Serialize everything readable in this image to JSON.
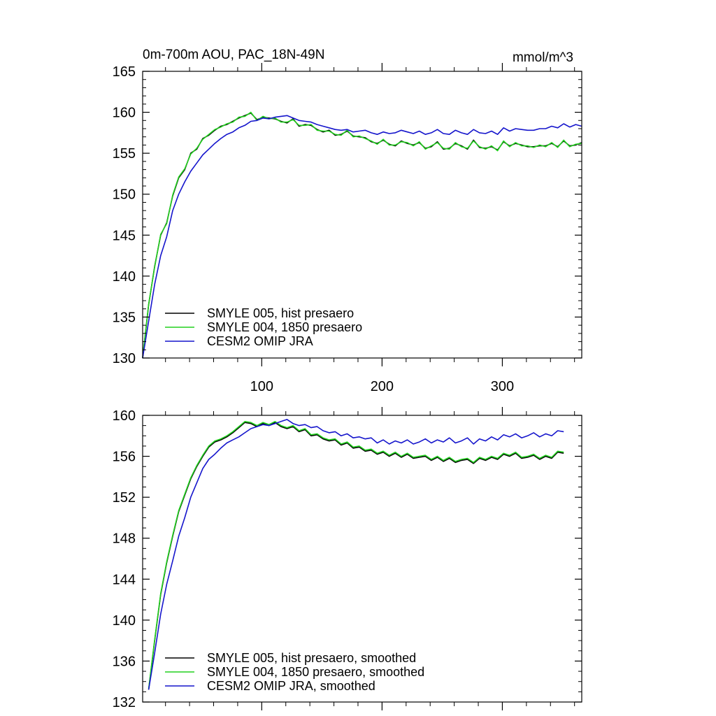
{
  "chart_data": [
    {
      "type": "line",
      "title": "0m-700m AOU, PAC_18N-49N",
      "units": "mmol/m^3",
      "xlabel": "",
      "ylabel": "",
      "xlim": [
        1,
        366
      ],
      "ylim": [
        130,
        165
      ],
      "x_ticks": [
        100,
        200,
        300
      ],
      "y_ticks": [
        130,
        135,
        140,
        145,
        150,
        155,
        160,
        165
      ],
      "y_minor_step": 1,
      "x_minor_step": 20,
      "grid": false,
      "legend_position": "bottom-left",
      "series": [
        {
          "name": "SMYLE 005, hist presaero",
          "color": "#000000",
          "x_start": 1,
          "x_step": 5,
          "values": [
            130.0,
            136.5,
            141.2,
            145.0,
            146.5,
            149.8,
            152.0,
            153.0,
            155.0,
            155.5,
            156.8,
            157.2,
            157.8,
            158.3,
            158.5,
            158.9,
            159.3,
            159.6,
            159.9,
            159.1,
            159.4,
            159.3,
            159.2,
            158.9,
            158.7,
            159.2,
            158.3,
            158.5,
            158.4,
            157.9,
            157.6,
            157.8,
            157.2,
            157.3,
            157.7,
            157.1,
            157.0,
            156.9,
            156.4,
            156.2,
            156.6,
            156.1,
            155.9,
            156.5,
            156.2,
            156.0,
            156.3,
            155.6,
            155.8,
            156.4,
            155.5,
            155.6,
            156.2,
            155.9,
            155.5,
            156.6,
            155.7,
            155.6,
            155.8,
            155.4,
            156.4,
            155.9,
            156.2,
            156.0,
            155.8,
            155.8,
            155.9,
            155.9,
            156.2,
            155.8,
            156.5,
            155.9,
            156.0,
            156.3
          ]
        },
        {
          "name": "SMYLE 004, 1850 presaero",
          "color": "#22d11f",
          "x_start": 1,
          "x_step": 5,
          "values": [
            130.1,
            136.6,
            141.1,
            145.1,
            146.4,
            149.9,
            152.1,
            153.1,
            154.9,
            155.6,
            156.7,
            157.3,
            157.9,
            158.2,
            158.6,
            158.8,
            159.4,
            159.5,
            160.0,
            159.0,
            159.5,
            159.2,
            159.3,
            158.8,
            158.8,
            159.1,
            158.4,
            158.4,
            158.5,
            157.8,
            157.7,
            157.7,
            157.3,
            157.2,
            157.8,
            157.0,
            157.1,
            156.8,
            156.5,
            156.1,
            156.7,
            156.0,
            156.0,
            156.4,
            156.3,
            155.9,
            156.4,
            155.5,
            155.9,
            156.3,
            155.6,
            155.5,
            156.3,
            155.8,
            155.6,
            156.5,
            155.8,
            155.5,
            155.9,
            155.3,
            156.5,
            155.8,
            156.3,
            155.9,
            155.9,
            155.7,
            156.0,
            155.8,
            156.3,
            155.7,
            156.6,
            155.8,
            156.1,
            156.2
          ]
        },
        {
          "name": "CESM2 OMIP JRA",
          "color": "#1515cc",
          "x_start": 1,
          "x_step": 5,
          "values": [
            130.0,
            134.5,
            139.0,
            142.5,
            144.8,
            148.0,
            150.0,
            151.5,
            152.8,
            153.8,
            154.8,
            155.5,
            156.2,
            156.8,
            157.3,
            157.6,
            158.1,
            158.4,
            158.9,
            159.0,
            159.3,
            159.2,
            159.4,
            159.5,
            159.6,
            159.3,
            159.0,
            158.9,
            158.8,
            158.5,
            158.3,
            158.1,
            157.9,
            157.8,
            157.9,
            157.6,
            157.7,
            157.8,
            157.5,
            157.3,
            157.6,
            157.4,
            157.5,
            157.8,
            157.6,
            157.4,
            157.7,
            157.3,
            157.5,
            157.9,
            157.4,
            157.3,
            157.8,
            157.5,
            157.3,
            157.9,
            157.5,
            157.4,
            157.7,
            157.3,
            158.1,
            157.7,
            158.0,
            157.9,
            157.8,
            157.8,
            158.0,
            158.0,
            158.3,
            158.1,
            158.6,
            158.2,
            158.5,
            158.3
          ]
        }
      ]
    },
    {
      "type": "line",
      "title": "",
      "xlabel": "",
      "ylabel": "",
      "xlim": [
        1,
        366
      ],
      "ylim": [
        132,
        160
      ],
      "x_ticks": [
        100,
        200,
        300
      ],
      "y_ticks": [
        132,
        136,
        140,
        144,
        148,
        152,
        156,
        160
      ],
      "y_minor_step": 1,
      "x_minor_step": 20,
      "grid": false,
      "legend_position": "bottom-left",
      "series": [
        {
          "name": "SMYLE 005, hist presaero, smoothed",
          "color": "#000000",
          "x_start": 6,
          "x_step": 5,
          "values": [
            133.2,
            138.0,
            142.5,
            145.6,
            148.2,
            150.6,
            152.2,
            153.8,
            155.0,
            156.0,
            156.9,
            157.4,
            157.6,
            157.9,
            158.3,
            158.8,
            159.3,
            159.2,
            158.9,
            159.2,
            159.0,
            159.3,
            158.9,
            158.7,
            158.9,
            158.4,
            158.6,
            158.0,
            158.1,
            157.7,
            157.5,
            157.6,
            157.1,
            157.3,
            156.8,
            156.9,
            156.5,
            156.6,
            156.2,
            156.4,
            156.0,
            156.3,
            155.9,
            156.2,
            155.8,
            155.9,
            156.0,
            155.6,
            155.9,
            155.5,
            155.8,
            155.4,
            155.6,
            155.7,
            155.3,
            155.8,
            155.6,
            155.9,
            155.7,
            156.2,
            156.0,
            156.3,
            155.8,
            155.9,
            156.1,
            155.7,
            156.0,
            155.8,
            156.4,
            156.3
          ]
        },
        {
          "name": "SMYLE 004, 1850 presaero, smoothed",
          "color": "#22d11f",
          "x_start": 6,
          "x_step": 5,
          "values": [
            133.3,
            138.1,
            142.6,
            145.7,
            148.3,
            150.7,
            152.3,
            153.9,
            155.1,
            156.1,
            157.0,
            157.5,
            157.7,
            158.0,
            158.4,
            158.9,
            159.4,
            159.3,
            159.0,
            159.3,
            159.1,
            159.4,
            159.0,
            158.8,
            159.0,
            158.5,
            158.7,
            158.1,
            158.2,
            157.8,
            157.6,
            157.7,
            157.2,
            157.4,
            156.9,
            157.0,
            156.6,
            156.7,
            156.3,
            156.5,
            156.1,
            156.4,
            156.0,
            156.3,
            155.9,
            156.0,
            156.1,
            155.7,
            156.0,
            155.6,
            155.9,
            155.5,
            155.7,
            155.8,
            155.4,
            155.9,
            155.7,
            156.0,
            155.8,
            156.3,
            156.1,
            156.4,
            155.9,
            156.0,
            156.2,
            155.8,
            156.1,
            155.9,
            156.5,
            156.4
          ]
        },
        {
          "name": "CESM2 OMIP JRA, smoothed",
          "color": "#1515cc",
          "x_start": 6,
          "x_step": 5,
          "values": [
            133.2,
            136.8,
            140.6,
            143.5,
            145.8,
            148.2,
            150.0,
            152.0,
            153.4,
            154.8,
            155.7,
            156.2,
            156.8,
            157.3,
            157.6,
            157.9,
            158.3,
            158.7,
            158.9,
            159.1,
            159.0,
            159.2,
            159.4,
            159.6,
            159.2,
            159.0,
            159.1,
            158.8,
            158.9,
            158.5,
            158.3,
            158.4,
            158.0,
            158.2,
            157.8,
            157.9,
            157.7,
            157.8,
            157.3,
            157.6,
            157.2,
            157.5,
            157.3,
            157.6,
            157.2,
            157.4,
            157.7,
            157.3,
            157.6,
            157.4,
            157.8,
            157.3,
            157.5,
            157.8,
            157.2,
            157.7,
            157.5,
            157.9,
            157.6,
            158.1,
            157.9,
            158.2,
            157.8,
            158.0,
            158.3,
            157.9,
            158.2,
            158.0,
            158.5,
            158.4
          ]
        }
      ]
    }
  ]
}
